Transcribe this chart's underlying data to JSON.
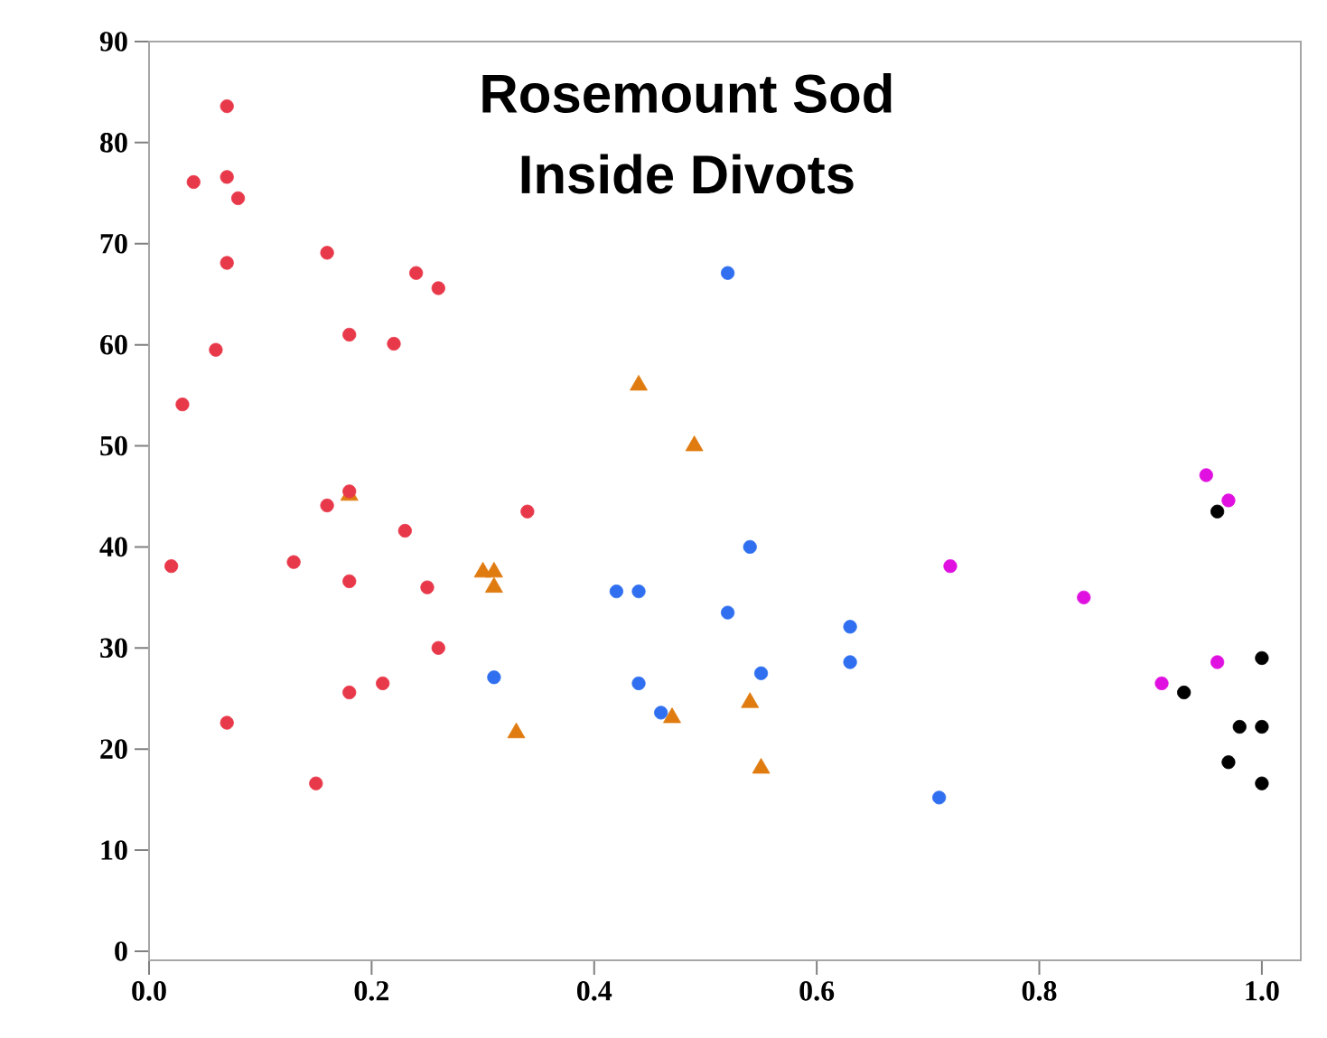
{
  "chart_data": {
    "type": "scatter",
    "title": "Rosemount Sod",
    "subtitle": "Inside Divots",
    "xlim": [
      0,
      1.035
    ],
    "ylim": [
      -0.9,
      90
    ],
    "xticks": [
      {
        "value": 0,
        "label": "0.0"
      },
      {
        "value": 0.2,
        "label": "0.2"
      },
      {
        "value": 0.4,
        "label": "0.4"
      },
      {
        "value": 0.6,
        "label": "0.6"
      },
      {
        "value": 0.8,
        "label": "0.8"
      },
      {
        "value": 1,
        "label": "1.0"
      }
    ],
    "yticks": [
      0,
      10,
      20,
      30,
      40,
      50,
      60,
      70,
      80,
      90
    ],
    "series": [
      {
        "color": "#e8394a",
        "marker": "circle",
        "x": [
          0.07,
          0.04,
          0.07,
          0.08,
          0.07,
          0.16,
          0.24,
          0.26,
          0.18,
          0.22,
          0.06,
          0.03,
          0.18,
          0.16,
          0.34,
          0.23,
          0.02,
          0.13,
          0.18,
          0.25,
          0.26,
          0.21,
          0.18,
          0.07,
          0.15
        ],
        "values": [
          83.6,
          76.1,
          76.6,
          74.5,
          68.1,
          69.1,
          67.1,
          65.6,
          61.0,
          60.1,
          59.5,
          54.1,
          45.5,
          44.1,
          43.5,
          41.6,
          38.1,
          38.5,
          36.6,
          36.0,
          30.0,
          26.5,
          25.6,
          22.6,
          16.6
        ]
      },
      {
        "color": "#e07b10",
        "marker": "triangle",
        "x": [
          0.18,
          0.44,
          0.49,
          0.3,
          0.31,
          0.31,
          0.33,
          0.47,
          0.54,
          0.55
        ],
        "values": [
          45.1,
          56.0,
          50.0,
          37.5,
          37.5,
          36.0,
          21.6,
          23.1,
          24.6,
          18.1
        ]
      },
      {
        "color": "#2f6ff0",
        "marker": "circle",
        "x": [
          0.52,
          0.54,
          0.42,
          0.44,
          0.52,
          0.63,
          0.63,
          0.55,
          0.31,
          0.44,
          0.46,
          0.71
        ],
        "values": [
          67.1,
          40.0,
          35.6,
          35.6,
          33.5,
          32.1,
          28.6,
          27.5,
          27.1,
          26.5,
          23.6,
          15.2
        ]
      },
      {
        "color": "#e010e0",
        "marker": "circle",
        "x": [
          0.95,
          0.97,
          0.72,
          0.84,
          0.96,
          0.91
        ],
        "values": [
          47.1,
          44.6,
          38.1,
          35.0,
          28.6,
          26.5
        ]
      },
      {
        "color": "#000000",
        "marker": "circle",
        "x": [
          0.96,
          1.0,
          0.93,
          0.98,
          1.0,
          0.97,
          1.0
        ],
        "values": [
          43.5,
          29.0,
          25.6,
          22.2,
          22.2,
          18.7,
          16.6
        ]
      }
    ]
  }
}
